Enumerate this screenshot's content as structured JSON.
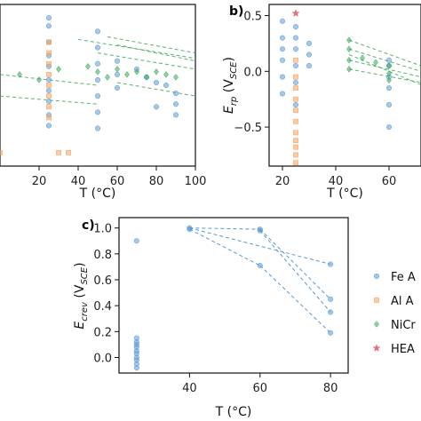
{
  "chart_data": [
    {
      "panel_label": "",
      "type": "scatter",
      "xlabel": "T (°C)",
      "ylabel": "",
      "xlim": [
        0,
        100
      ],
      "x_ticks": [
        "20",
        "40",
        "60",
        "80",
        "100"
      ],
      "y_ticks": [],
      "grid": false,
      "series": [
        {
          "name": "Fe A",
          "color": "#5b9bd5",
          "marker": "circle",
          "x": [
            25,
            25,
            25,
            25,
            25,
            25,
            25,
            25,
            25,
            25,
            50,
            50,
            50,
            50,
            50,
            50,
            50,
            60,
            60,
            60,
            70,
            75,
            80,
            80,
            85,
            90,
            90,
            90
          ],
          "y": [
            5.5,
            5.2,
            4.6,
            4.1,
            3.7,
            3.2,
            2.8,
            2.4,
            1.9,
            1.5,
            5.0,
            4.4,
            3.8,
            3.2,
            2.6,
            2.0,
            1.4,
            3.9,
            3.4,
            2.9,
            3.6,
            3.3,
            3.1,
            2.2,
            3.0,
            2.7,
            2.3,
            1.9
          ]
        },
        {
          "name": "Al A",
          "color": "#f5a05a",
          "marker": "square",
          "x": [
            0,
            25,
            25,
            25,
            25,
            25,
            25,
            25,
            25,
            30,
            35
          ],
          "y": [
            0.5,
            4.6,
            4.2,
            3.8,
            3.4,
            3.0,
            2.6,
            2.2,
            1.8,
            0.5,
            0.5
          ]
        },
        {
          "name": "NiCr",
          "color": "#3aa655",
          "marker": "diamond",
          "x": [
            10,
            20,
            30,
            45,
            50,
            55,
            60,
            65,
            70,
            75,
            80,
            85,
            90
          ],
          "y": [
            3.4,
            3.2,
            3.6,
            3.7,
            3.5,
            3.3,
            3.6,
            3.4,
            3.5,
            3.3,
            3.5,
            3.4,
            3.3
          ]
        }
      ],
      "links": [
        {
          "x": [
            40,
            100
          ],
          "y": [
            4.7,
            4.0
          ]
        },
        {
          "x": [
            50,
            100
          ],
          "y": [
            4.2,
            3.6
          ]
        },
        {
          "x": [
            55,
            100
          ],
          "y": [
            4.8,
            4.2
          ]
        },
        {
          "x": [
            60,
            100
          ],
          "y": [
            4.5,
            3.9
          ]
        },
        {
          "x": [
            0,
            50
          ],
          "y": [
            3.4,
            3.0
          ]
        },
        {
          "x": [
            0,
            50
          ],
          "y": [
            2.6,
            2.3
          ]
        },
        {
          "x": [
            60,
            100
          ],
          "y": [
            3.1,
            2.6
          ]
        }
      ]
    },
    {
      "panel_label": "b)",
      "type": "scatter",
      "xlabel": "T (°C)",
      "ylabel": "E_rp  (V_SCE)",
      "xlim": [
        15,
        72
      ],
      "ylim": [
        -0.85,
        0.6
      ],
      "x_ticks": [
        "20",
        "40",
        "60"
      ],
      "y_ticks": [
        "0.5",
        "0.0",
        "−0.5"
      ],
      "grid": false,
      "series": [
        {
          "name": "Fe A",
          "color": "#5b9bd5",
          "marker": "circle",
          "x": [
            20,
            20,
            20,
            20,
            20,
            20,
            25,
            25,
            25,
            25,
            25,
            25,
            30,
            30,
            30,
            60,
            60,
            60,
            60,
            60,
            60
          ],
          "y": [
            0.45,
            0.3,
            0.2,
            0.1,
            -0.05,
            -0.2,
            0.4,
            0.3,
            0.2,
            0.05,
            -0.1,
            -0.3,
            0.25,
            0.15,
            0.05,
            0.1,
            0.05,
            -0.05,
            -0.15,
            -0.3,
            -0.5
          ]
        },
        {
          "name": "Al A",
          "color": "#f5a05a",
          "marker": "square",
          "x": [
            25,
            25,
            25,
            25,
            25,
            25,
            25,
            25,
            25,
            25,
            25
          ],
          "y": [
            0.1,
            -0.05,
            -0.15,
            -0.25,
            -0.35,
            -0.45,
            -0.55,
            -0.62,
            -0.68,
            -0.75,
            -0.82
          ]
        },
        {
          "name": "NiCr",
          "color": "#3aa655",
          "marker": "diamond",
          "x": [
            45,
            45,
            45,
            45,
            50,
            55,
            60,
            60,
            60
          ],
          "y": [
            0.28,
            0.2,
            0.1,
            0.02,
            0.12,
            0.08,
            0.05,
            -0.02,
            -0.08
          ]
        },
        {
          "name": "HEA",
          "color": "#e05060",
          "marker": "star",
          "x": [
            25
          ],
          "y": [
            0.52
          ]
        }
      ],
      "links": [
        {
          "x": [
            45,
            72
          ],
          "y": [
            0.2,
            0.0
          ]
        },
        {
          "x": [
            45,
            72
          ],
          "y": [
            0.1,
            -0.05
          ]
        },
        {
          "x": [
            45,
            72
          ],
          "y": [
            0.02,
            -0.1
          ]
        },
        {
          "x": [
            45,
            72
          ],
          "y": [
            0.28,
            0.05
          ]
        },
        {
          "x": [
            45,
            72
          ],
          "y": [
            0.15,
            -0.12
          ]
        }
      ]
    },
    {
      "panel_label": "c)",
      "type": "scatter",
      "xlabel": "T (°C)",
      "ylabel": "E_crev  (V_SCE)",
      "xlim": [
        20,
        85
      ],
      "ylim": [
        -0.12,
        1.08
      ],
      "x_ticks": [
        "40",
        "60",
        "80"
      ],
      "y_ticks": [
        "1.0",
        "0.8",
        "0.6",
        "0.4",
        "0.2",
        "0.0"
      ],
      "grid": false,
      "series": [
        {
          "name": "Fe A",
          "color": "#5b9bd5",
          "marker": "circle",
          "x": [
            25,
            25,
            25,
            25,
            25,
            25,
            25,
            25,
            25,
            25,
            25,
            40,
            40,
            60,
            60,
            60,
            80,
            80,
            80,
            80
          ],
          "y": [
            0.9,
            0.15,
            0.12,
            0.1,
            0.08,
            0.05,
            0.03,
            0.0,
            -0.02,
            -0.05,
            -0.08,
            1.0,
            0.99,
            0.99,
            0.98,
            0.71,
            0.72,
            0.45,
            0.35,
            0.19
          ]
        }
      ],
      "links": [
        {
          "x": [
            40,
            60
          ],
          "y": [
            1.0,
            0.99
          ]
        },
        {
          "x": [
            40,
            80
          ],
          "y": [
            1.0,
            0.72
          ]
        },
        {
          "x": [
            40,
            60
          ],
          "y": [
            0.99,
            0.71
          ]
        },
        {
          "x": [
            60,
            80
          ],
          "y": [
            0.99,
            0.45
          ]
        },
        {
          "x": [
            60,
            80
          ],
          "y": [
            0.98,
            0.35
          ]
        },
        {
          "x": [
            60,
            80
          ],
          "y": [
            0.71,
            0.19
          ]
        }
      ]
    }
  ],
  "legend": {
    "placement": "right",
    "entries": [
      {
        "label": "Fe A",
        "color": "#5b9bd5",
        "marker": "circle"
      },
      {
        "label": "Al A",
        "color": "#f5a05a",
        "marker": "square"
      },
      {
        "label": "NiCr",
        "color": "#3aa655",
        "marker": "diamond"
      },
      {
        "label": "HEA",
        "color": "#e05060",
        "marker": "star"
      }
    ]
  }
}
